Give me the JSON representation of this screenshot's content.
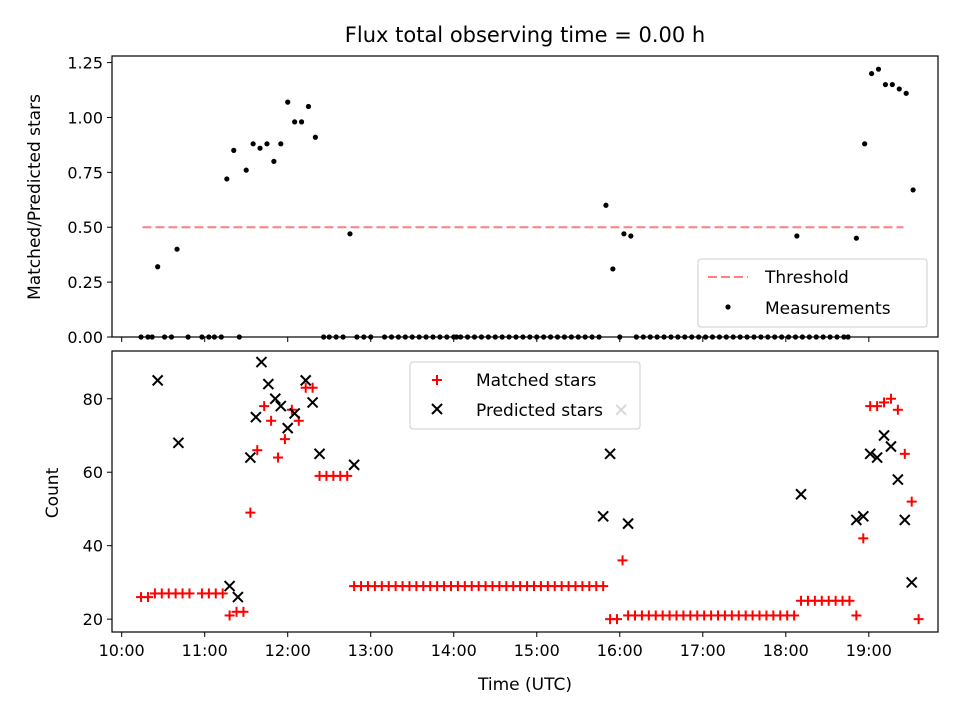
{
  "chart_data": [
    {
      "type": "scatter",
      "title": "Flux total observing time = 0.00 h",
      "xlabel": "",
      "ylabel": "Matched/Predicted stars",
      "xlim": [
        "09:53",
        "19:50"
      ],
      "ylim": [
        0,
        1.28
      ],
      "x_ticks": [
        "10:00",
        "11:00",
        "12:00",
        "13:00",
        "14:00",
        "15:00",
        "16:00",
        "17:00",
        "18:00",
        "19:00"
      ],
      "y_ticks": [
        "0.00",
        "0.25",
        "0.50",
        "0.75",
        "1.00",
        "1.25"
      ],
      "legend": {
        "position": "lower right",
        "entries": [
          "Threshold",
          "Measurements"
        ]
      },
      "threshold": {
        "name": "Threshold",
        "value": 0.5,
        "x_range": [
          "10:15",
          "19:25"
        ],
        "color": "#ff7f7f",
        "style": "dashed"
      },
      "series": [
        {
          "name": "Measurements",
          "color": "#000000",
          "marker": "dot",
          "points": [
            [
              "10:14",
              0
            ],
            [
              "10:19",
              0
            ],
            [
              "10:22",
              0
            ],
            [
              "10:26",
              0.32
            ],
            [
              "10:31",
              0
            ],
            [
              "10:36",
              0
            ],
            [
              "10:40",
              0.4
            ],
            [
              "10:48",
              0
            ],
            [
              "10:58",
              0
            ],
            [
              "11:03",
              0
            ],
            [
              "11:07",
              0
            ],
            [
              "11:12",
              0
            ],
            [
              "11:16",
              0.72
            ],
            [
              "11:21",
              0.85
            ],
            [
              "11:25",
              0
            ],
            [
              "11:30",
              0.76
            ],
            [
              "11:35",
              0.88
            ],
            [
              "11:40",
              0.86
            ],
            [
              "11:45",
              0.88
            ],
            [
              "11:50",
              0.8
            ],
            [
              "11:55",
              0.88
            ],
            [
              "12:00",
              1.07
            ],
            [
              "12:05",
              0.98
            ],
            [
              "12:10",
              0.98
            ],
            [
              "12:15",
              1.05
            ],
            [
              "12:20",
              0.91
            ],
            [
              "12:26",
              0
            ],
            [
              "12:30",
              0
            ],
            [
              "12:35",
              0
            ],
            [
              "12:40",
              0
            ],
            [
              "12:45",
              0.47
            ],
            [
              "12:50",
              0
            ],
            [
              "12:55",
              0
            ],
            [
              "13:00",
              0
            ],
            [
              "13:10",
              0
            ],
            [
              "13:15",
              0
            ],
            [
              "13:20",
              0
            ],
            [
              "13:25",
              0
            ],
            [
              "13:30",
              0
            ],
            [
              "13:35",
              0
            ],
            [
              "13:40",
              0
            ],
            [
              "13:45",
              0
            ],
            [
              "13:50",
              0
            ],
            [
              "13:55",
              0
            ],
            [
              "14:00",
              0
            ],
            [
              "14:02",
              0
            ],
            [
              "14:05",
              0
            ],
            [
              "14:10",
              0
            ],
            [
              "14:15",
              0
            ],
            [
              "14:20",
              0
            ],
            [
              "14:25",
              0
            ],
            [
              "14:30",
              0
            ],
            [
              "14:35",
              0
            ],
            [
              "14:40",
              0
            ],
            [
              "14:45",
              0
            ],
            [
              "14:50",
              0
            ],
            [
              "14:55",
              0
            ],
            [
              "15:00",
              0
            ],
            [
              "15:05",
              0
            ],
            [
              "15:10",
              0
            ],
            [
              "15:15",
              0
            ],
            [
              "15:20",
              0
            ],
            [
              "15:25",
              0
            ],
            [
              "15:30",
              0
            ],
            [
              "15:35",
              0
            ],
            [
              "15:40",
              0
            ],
            [
              "15:45",
              0
            ],
            [
              "15:50",
              0.6
            ],
            [
              "15:55",
              0.31
            ],
            [
              "16:00",
              0
            ],
            [
              "16:03",
              0.47
            ],
            [
              "16:08",
              0.46
            ],
            [
              "16:12",
              0
            ],
            [
              "16:17",
              0
            ],
            [
              "16:22",
              0
            ],
            [
              "16:27",
              0
            ],
            [
              "16:32",
              0
            ],
            [
              "16:37",
              0
            ],
            [
              "16:42",
              0
            ],
            [
              "16:47",
              0
            ],
            [
              "16:52",
              0
            ],
            [
              "16:57",
              0
            ],
            [
              "17:02",
              0
            ],
            [
              "17:07",
              0
            ],
            [
              "17:12",
              0
            ],
            [
              "17:17",
              0
            ],
            [
              "17:22",
              0
            ],
            [
              "17:27",
              0
            ],
            [
              "17:32",
              0
            ],
            [
              "17:37",
              0
            ],
            [
              "17:42",
              0
            ],
            [
              "17:47",
              0
            ],
            [
              "17:52",
              0
            ],
            [
              "17:57",
              0
            ],
            [
              "18:02",
              0
            ],
            [
              "18:07",
              0
            ],
            [
              "18:08",
              0.46
            ],
            [
              "18:12",
              0
            ],
            [
              "18:17",
              0
            ],
            [
              "18:22",
              0
            ],
            [
              "18:27",
              0
            ],
            [
              "18:32",
              0
            ],
            [
              "18:37",
              0
            ],
            [
              "18:42",
              0
            ],
            [
              "18:45",
              0
            ],
            [
              "18:51",
              0.45
            ],
            [
              "18:57",
              0.88
            ],
            [
              "19:02",
              1.2
            ],
            [
              "19:07",
              1.22
            ],
            [
              "19:12",
              1.15
            ],
            [
              "19:17",
              1.15
            ],
            [
              "19:22",
              1.13
            ],
            [
              "19:27",
              1.11
            ],
            [
              "19:32",
              0.67
            ]
          ]
        }
      ]
    },
    {
      "type": "scatter",
      "title": "",
      "xlabel": "Time (UTC)",
      "ylabel": "Count",
      "xlim": [
        "09:53",
        "19:50"
      ],
      "ylim": [
        16.5,
        93
      ],
      "x_ticks": [
        "10:00",
        "11:00",
        "12:00",
        "13:00",
        "14:00",
        "15:00",
        "16:00",
        "17:00",
        "18:00",
        "19:00"
      ],
      "y_ticks": [
        "20",
        "40",
        "60",
        "80"
      ],
      "legend": {
        "position": "upper center",
        "entries": [
          "Matched stars",
          "Predicted stars"
        ]
      },
      "series": [
        {
          "name": "Matched stars",
          "color": "#ff0000",
          "marker": "plus",
          "points": [
            [
              "10:14",
              26
            ],
            [
              "10:19",
              26
            ],
            [
              "10:24",
              27
            ],
            [
              "10:29",
              27
            ],
            [
              "10:34",
              27
            ],
            [
              "10:39",
              27
            ],
            [
              "10:44",
              27
            ],
            [
              "10:49",
              27
            ],
            [
              "10:58",
              27
            ],
            [
              "11:03",
              27
            ],
            [
              "11:08",
              27
            ],
            [
              "11:13",
              27
            ],
            [
              "11:18",
              21
            ],
            [
              "11:23",
              22
            ],
            [
              "11:28",
              22
            ],
            [
              "11:33",
              49
            ],
            [
              "11:38",
              66
            ],
            [
              "11:43",
              78
            ],
            [
              "11:48",
              74
            ],
            [
              "11:53",
              64
            ],
            [
              "11:58",
              69
            ],
            [
              "12:03",
              77
            ],
            [
              "12:08",
              74
            ],
            [
              "12:13",
              83
            ],
            [
              "12:18",
              83
            ],
            [
              "12:23",
              59
            ],
            [
              "12:28",
              59
            ],
            [
              "12:33",
              59
            ],
            [
              "12:38",
              59
            ],
            [
              "12:43",
              59
            ],
            [
              "12:48",
              29
            ],
            [
              "12:53",
              29
            ],
            [
              "12:58",
              29
            ],
            [
              "13:03",
              29
            ],
            [
              "13:08",
              29
            ],
            [
              "13:13",
              29
            ],
            [
              "13:18",
              29
            ],
            [
              "13:23",
              29
            ],
            [
              "13:28",
              29
            ],
            [
              "13:33",
              29
            ],
            [
              "13:38",
              29
            ],
            [
              "13:43",
              29
            ],
            [
              "13:48",
              29
            ],
            [
              "13:53",
              29
            ],
            [
              "13:58",
              29
            ],
            [
              "14:03",
              29
            ],
            [
              "14:08",
              29
            ],
            [
              "14:13",
              29
            ],
            [
              "14:18",
              29
            ],
            [
              "14:23",
              29
            ],
            [
              "14:28",
              29
            ],
            [
              "14:33",
              29
            ],
            [
              "14:38",
              29
            ],
            [
              "14:43",
              29
            ],
            [
              "14:48",
              29
            ],
            [
              "14:53",
              29
            ],
            [
              "14:58",
              29
            ],
            [
              "15:03",
              29
            ],
            [
              "15:08",
              29
            ],
            [
              "15:13",
              29
            ],
            [
              "15:18",
              29
            ],
            [
              "15:23",
              29
            ],
            [
              "15:28",
              29
            ],
            [
              "15:33",
              29
            ],
            [
              "15:38",
              29
            ],
            [
              "15:43",
              29
            ],
            [
              "15:48",
              29
            ],
            [
              "15:53",
              20
            ],
            [
              "15:58",
              20
            ],
            [
              "16:02",
              36
            ],
            [
              "16:06",
              21
            ],
            [
              "16:11",
              21
            ],
            [
              "16:16",
              21
            ],
            [
              "16:21",
              21
            ],
            [
              "16:26",
              21
            ],
            [
              "16:31",
              21
            ],
            [
              "16:36",
              21
            ],
            [
              "16:41",
              21
            ],
            [
              "16:46",
              21
            ],
            [
              "16:51",
              21
            ],
            [
              "16:56",
              21
            ],
            [
              "17:01",
              21
            ],
            [
              "17:06",
              21
            ],
            [
              "17:11",
              21
            ],
            [
              "17:16",
              21
            ],
            [
              "17:21",
              21
            ],
            [
              "17:26",
              21
            ],
            [
              "17:31",
              21
            ],
            [
              "17:36",
              21
            ],
            [
              "17:41",
              21
            ],
            [
              "17:46",
              21
            ],
            [
              "17:51",
              21
            ],
            [
              "17:56",
              21
            ],
            [
              "18:01",
              21
            ],
            [
              "18:06",
              21
            ],
            [
              "18:11",
              25
            ],
            [
              "18:16",
              25
            ],
            [
              "18:21",
              25
            ],
            [
              "18:26",
              25
            ],
            [
              "18:31",
              25
            ],
            [
              "18:36",
              25
            ],
            [
              "18:41",
              25
            ],
            [
              "18:46",
              25
            ],
            [
              "18:51",
              21
            ],
            [
              "18:56",
              42
            ],
            [
              "19:01",
              78
            ],
            [
              "19:06",
              78
            ],
            [
              "19:11",
              79
            ],
            [
              "19:16",
              80
            ],
            [
              "19:21",
              77
            ],
            [
              "19:26",
              65
            ],
            [
              "19:31",
              52
            ],
            [
              "19:36",
              20
            ]
          ]
        },
        {
          "name": "Predicted stars",
          "color": "#000000",
          "marker": "x",
          "points": [
            [
              "10:26",
              85
            ],
            [
              "10:41",
              68
            ],
            [
              "11:18",
              29
            ],
            [
              "11:24",
              26
            ],
            [
              "11:33",
              64
            ],
            [
              "11:37",
              75
            ],
            [
              "11:41",
              90
            ],
            [
              "11:46",
              84
            ],
            [
              "11:51",
              80
            ],
            [
              "11:55",
              78
            ],
            [
              "12:00",
              72
            ],
            [
              "12:05",
              76
            ],
            [
              "12:13",
              85
            ],
            [
              "12:18",
              79
            ],
            [
              "12:23",
              65
            ],
            [
              "12:48",
              62
            ],
            [
              "15:48",
              48
            ],
            [
              "15:53",
              65
            ],
            [
              "16:01",
              77
            ],
            [
              "16:06",
              46
            ],
            [
              "18:11",
              54
            ],
            [
              "18:51",
              47
            ],
            [
              "18:56",
              48
            ],
            [
              "19:01",
              65
            ],
            [
              "19:06",
              64
            ],
            [
              "19:11",
              70
            ],
            [
              "19:16",
              67
            ],
            [
              "19:21",
              58
            ],
            [
              "19:26",
              47
            ],
            [
              "19:31",
              30
            ]
          ]
        }
      ]
    }
  ]
}
